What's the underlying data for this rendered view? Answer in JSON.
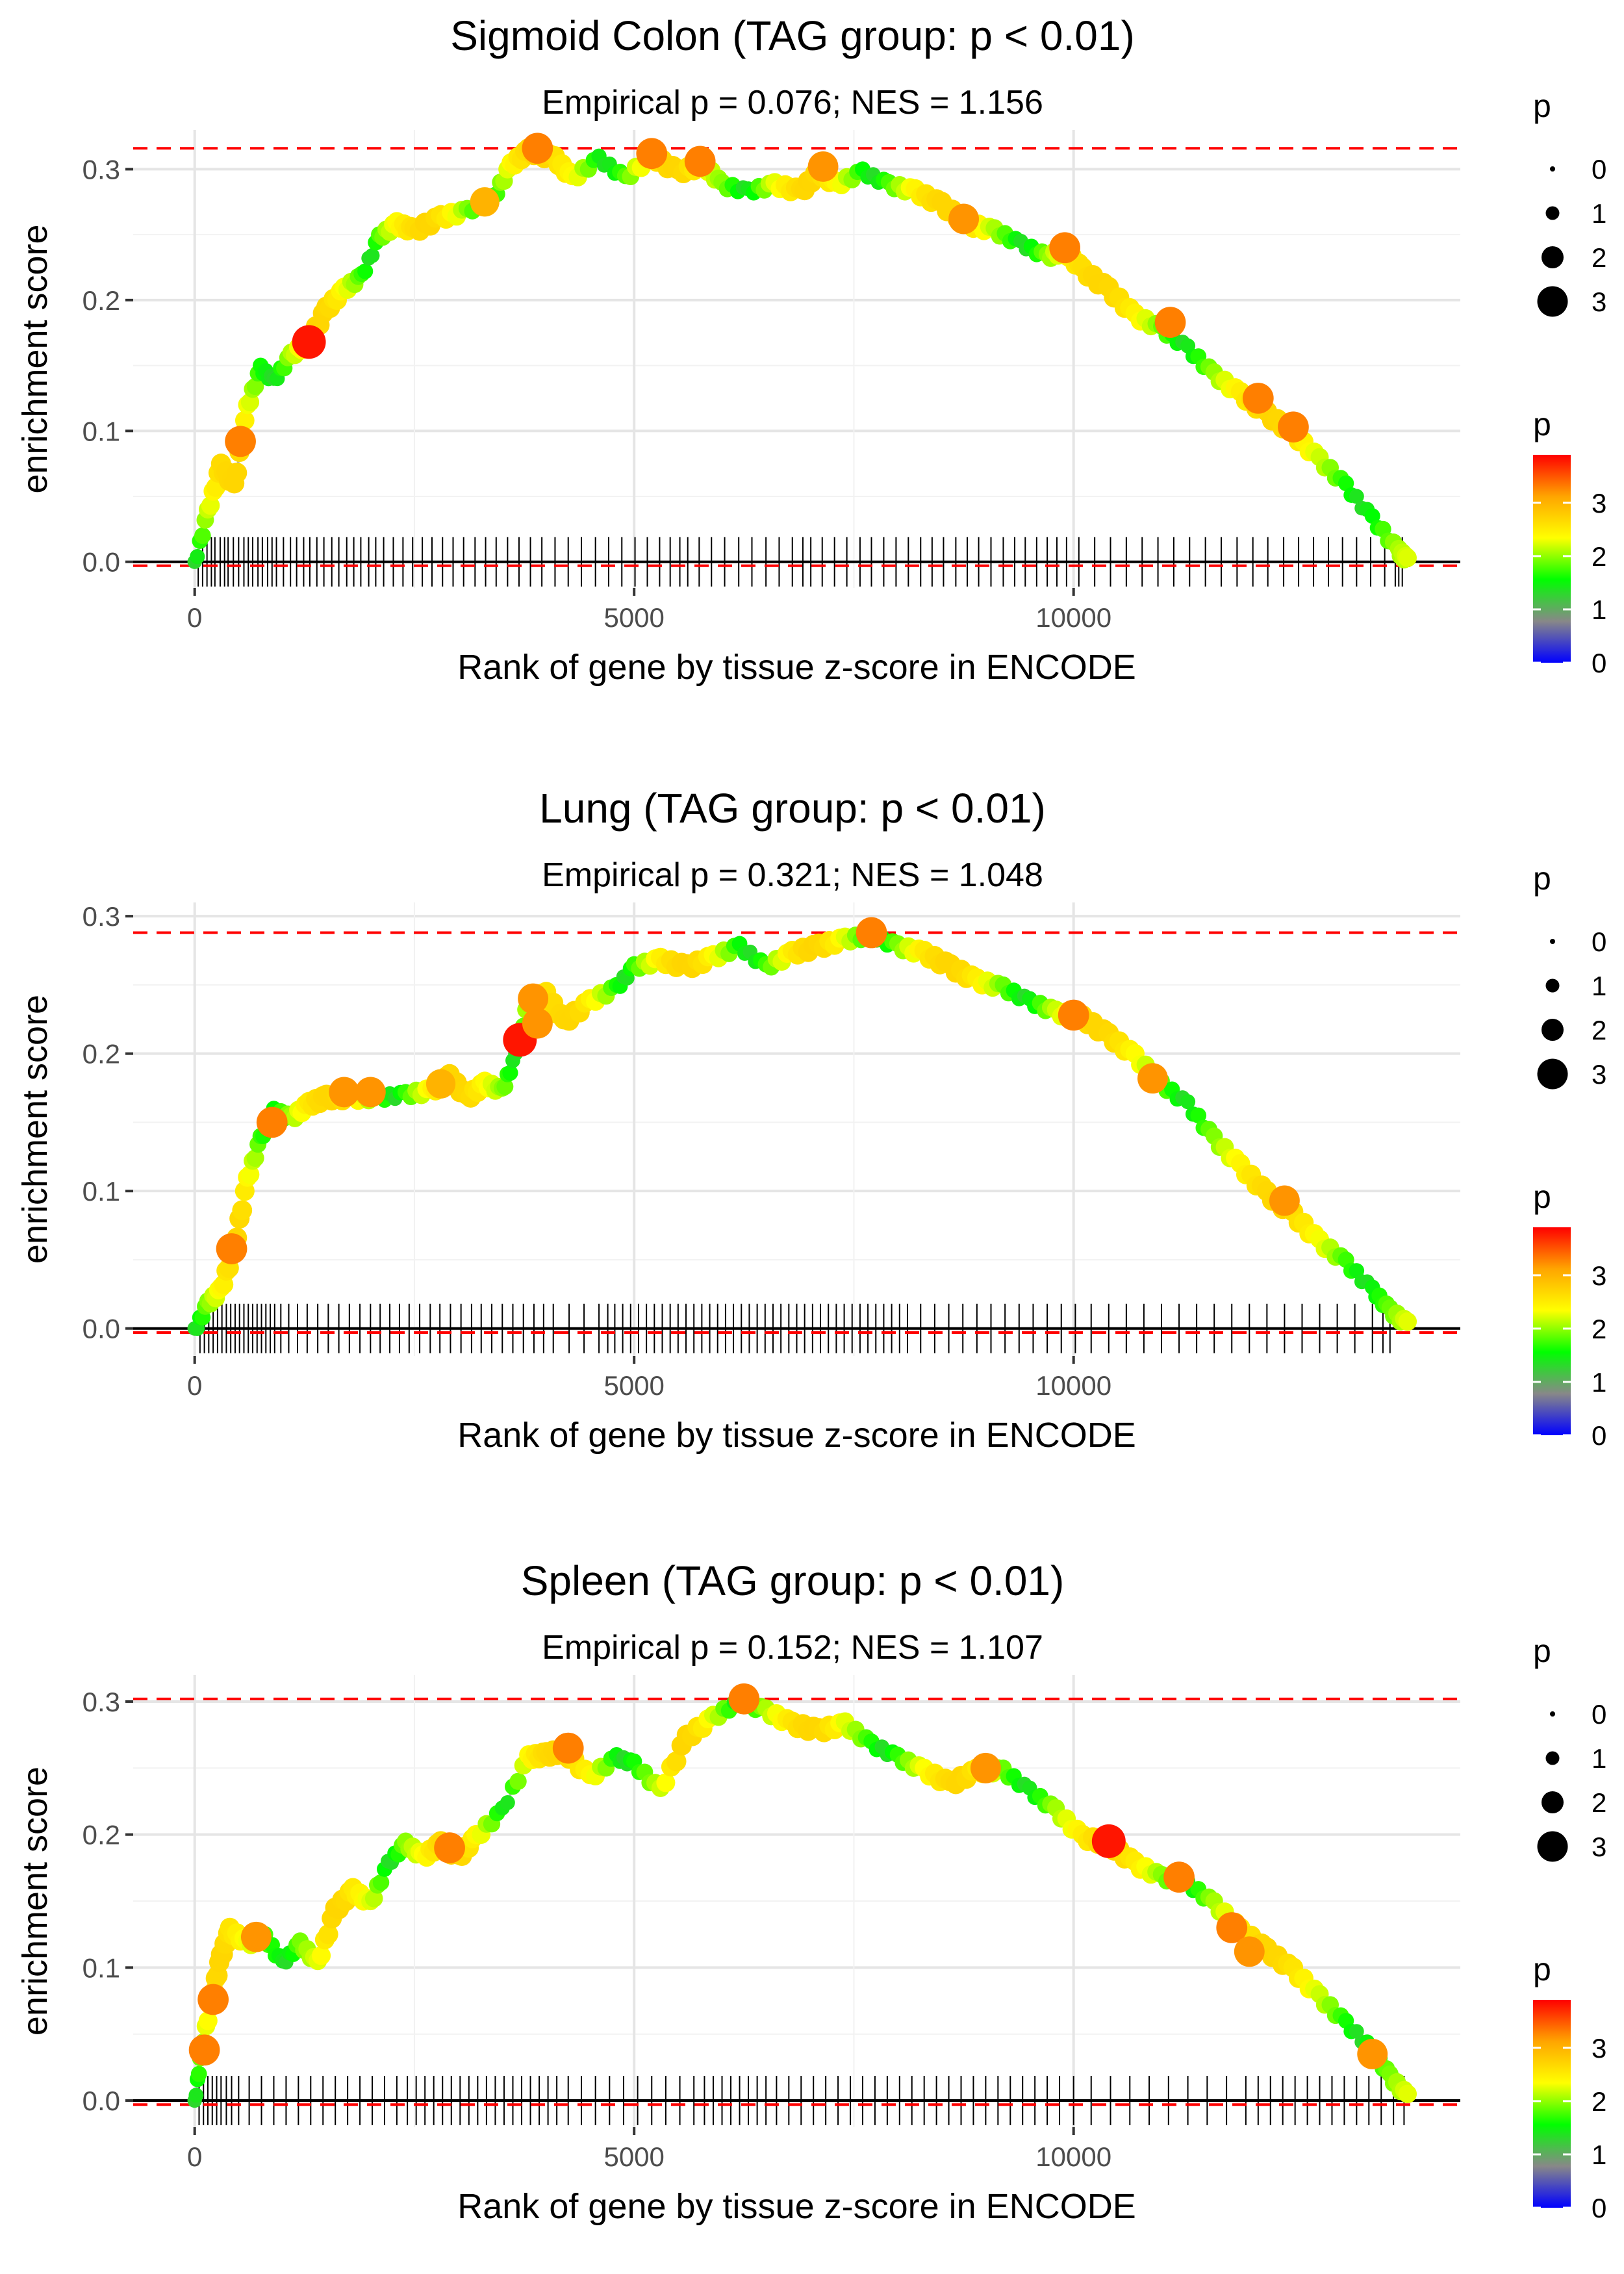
{
  "legend": {
    "size_title": "p",
    "size_labels": [
      "0",
      "1",
      "2",
      "3"
    ],
    "color_title": "p",
    "color_labels": [
      "3",
      "2",
      "1",
      "0"
    ],
    "gradient_colors": [
      "#0000FF",
      "#888888",
      "#00FF00",
      "#FFFF00",
      "#FFA500",
      "#FF0000"
    ]
  },
  "panels": [
    {
      "title": "Sigmoid Colon (TAG group: p < 0.01)",
      "subtitle": "Empirical p = 0.076; NES = 1.156"
    },
    {
      "title": "Lung (TAG group: p < 0.01)",
      "subtitle": "Empirical p = 0.321; NES = 1.048"
    },
    {
      "title": "Spleen (TAG group: p < 0.01)",
      "subtitle": "Empirical p = 0.152; NES = 1.107"
    }
  ],
  "chart_data": [
    {
      "type": "line",
      "title": "Sigmoid Colon (TAG group: p < 0.01)",
      "subtitle": "Empirical p = 0.076; NES = 1.156",
      "xlabel": "Rank of gene by tissue z-score in ENCODE",
      "ylabel": "enrichment score",
      "xlim": [
        -700,
        14400
      ],
      "ylim": [
        -0.02,
        0.33
      ],
      "xticks": [
        0,
        5000,
        10000
      ],
      "xtick_labels": [
        "0",
        "5000",
        "10000"
      ],
      "yticks": [
        0.0,
        0.1,
        0.2,
        0.3
      ],
      "ytick_labels": [
        "0.0",
        "0.1",
        "0.2",
        "0.3"
      ],
      "max_es": 0.316,
      "min_es": -0.003,
      "curve": [
        [
          0,
          0.0
        ],
        [
          150,
          0.04
        ],
        [
          300,
          0.075
        ],
        [
          450,
          0.06
        ],
        [
          600,
          0.12
        ],
        [
          750,
          0.15
        ],
        [
          900,
          0.14
        ],
        [
          1100,
          0.16
        ],
        [
          1300,
          0.17
        ],
        [
          1500,
          0.195
        ],
        [
          1700,
          0.21
        ],
        [
          1900,
          0.22
        ],
        [
          2100,
          0.25
        ],
        [
          2300,
          0.26
        ],
        [
          2500,
          0.255
        ],
        [
          2800,
          0.265
        ],
        [
          3100,
          0.27
        ],
        [
          3400,
          0.28
        ],
        [
          3600,
          0.305
        ],
        [
          3800,
          0.316
        ],
        [
          4100,
          0.31
        ],
        [
          4300,
          0.295
        ],
        [
          4600,
          0.31
        ],
        [
          4900,
          0.295
        ],
        [
          5200,
          0.312
        ],
        [
          5500,
          0.3
        ],
        [
          5800,
          0.305
        ],
        [
          6000,
          0.29
        ],
        [
          6300,
          0.285
        ],
        [
          6600,
          0.29
        ],
        [
          6900,
          0.285
        ],
        [
          7100,
          0.3
        ],
        [
          7300,
          0.29
        ],
        [
          7600,
          0.3
        ],
        [
          7900,
          0.29
        ],
        [
          8200,
          0.285
        ],
        [
          8500,
          0.275
        ],
        [
          8800,
          0.26
        ],
        [
          9100,
          0.255
        ],
        [
          9400,
          0.245
        ],
        [
          9700,
          0.235
        ],
        [
          9900,
          0.24
        ],
        [
          10100,
          0.225
        ],
        [
          10400,
          0.21
        ],
        [
          10700,
          0.19
        ],
        [
          11000,
          0.18
        ],
        [
          11300,
          0.165
        ],
        [
          11600,
          0.145
        ],
        [
          11900,
          0.13
        ],
        [
          12200,
          0.115
        ],
        [
          12500,
          0.1
        ],
        [
          12800,
          0.08
        ],
        [
          13100,
          0.06
        ],
        [
          13400,
          0.035
        ],
        [
          13700,
          0.01
        ],
        [
          13800,
          0.003
        ]
      ],
      "highlights": [
        [
          1300,
          0.168,
          3.8
        ],
        [
          520,
          0.092,
          3.3
        ],
        [
          3900,
          0.316,
          3.3
        ],
        [
          5200,
          0.312,
          3.3
        ],
        [
          5750,
          0.306,
          3.3
        ],
        [
          7150,
          0.302,
          3.2
        ],
        [
          8750,
          0.262,
          3.2
        ],
        [
          9900,
          0.24,
          3.3
        ],
        [
          11100,
          0.183,
          3.3
        ],
        [
          12100,
          0.125,
          3.3
        ],
        [
          12500,
          0.103,
          3.3
        ],
        [
          3300,
          0.275,
          3.0
        ]
      ],
      "leading_edge_ranks": [
        40,
        90,
        140,
        190,
        230,
        290,
        340,
        380,
        440,
        500,
        560,
        610,
        660,
        720,
        770,
        830,
        880,
        930,
        1010,
        1090,
        1160,
        1240,
        1310,
        1390,
        1470,
        1560,
        1640,
        1730,
        1810,
        1890,
        1980,
        2060,
        2150,
        2260,
        2370,
        2480,
        2590,
        2700,
        2820,
        2940,
        3060,
        3190,
        3310,
        3430,
        3560,
        3690,
        3820,
        3950,
        4100,
        4250,
        4400,
        4560,
        4710,
        4860,
        5010,
        5150,
        5290,
        5410,
        5520,
        5610,
        5740,
        5880,
        6030,
        6190,
        6340,
        6500,
        6650,
        6800,
        6920,
        7010,
        7140,
        7280,
        7420,
        7570,
        7700,
        7840,
        7980,
        8120,
        8260,
        8390,
        8520,
        8660,
        8790,
        8920,
        9060,
        9200,
        9330,
        9450,
        9580,
        9700,
        9810,
        9920,
        10060,
        10240,
        10420,
        10600,
        10780,
        10960,
        11140,
        11320,
        11500,
        11680,
        11860,
        12040,
        12210,
        12390,
        12560,
        12730,
        12900,
        13060,
        13220,
        13380,
        13540,
        13660,
        13700,
        13740
      ]
    },
    {
      "type": "line",
      "title": "Lung (TAG group: p < 0.01)",
      "subtitle": "Empirical p = 0.321; NES = 1.048",
      "xlabel": "Rank of gene by tissue z-score in ENCODE",
      "ylabel": "enrichment score",
      "xlim": [
        -700,
        14400
      ],
      "ylim": [
        -0.02,
        0.31
      ],
      "xticks": [
        0,
        5000,
        10000
      ],
      "xtick_labels": [
        "0",
        "5000",
        "10000"
      ],
      "yticks": [
        0.0,
        0.1,
        0.2,
        0.3
      ],
      "ytick_labels": [
        "0.0",
        "0.1",
        "0.2",
        "0.3"
      ],
      "max_es": 0.288,
      "min_es": -0.003,
      "curve": [
        [
          0,
          0.0
        ],
        [
          150,
          0.02
        ],
        [
          300,
          0.03
        ],
        [
          450,
          0.06
        ],
        [
          600,
          0.11
        ],
        [
          750,
          0.14
        ],
        [
          900,
          0.16
        ],
        [
          1100,
          0.155
        ],
        [
          1300,
          0.165
        ],
        [
          1500,
          0.17
        ],
        [
          1800,
          0.17
        ],
        [
          2100,
          0.17
        ],
        [
          2400,
          0.172
        ],
        [
          2700,
          0.175
        ],
        [
          2900,
          0.185
        ],
        [
          3100,
          0.17
        ],
        [
          3300,
          0.18
        ],
        [
          3500,
          0.175
        ],
        [
          3650,
          0.2
        ],
        [
          3800,
          0.24
        ],
        [
          4000,
          0.245
        ],
        [
          4200,
          0.225
        ],
        [
          4500,
          0.24
        ],
        [
          4800,
          0.25
        ],
        [
          5000,
          0.265
        ],
        [
          5300,
          0.27
        ],
        [
          5600,
          0.265
        ],
        [
          5900,
          0.272
        ],
        [
          6200,
          0.28
        ],
        [
          6500,
          0.265
        ],
        [
          6800,
          0.275
        ],
        [
          7100,
          0.28
        ],
        [
          7400,
          0.285
        ],
        [
          7700,
          0.288
        ],
        [
          8000,
          0.28
        ],
        [
          8300,
          0.275
        ],
        [
          8600,
          0.265
        ],
        [
          8900,
          0.255
        ],
        [
          9200,
          0.25
        ],
        [
          9500,
          0.24
        ],
        [
          9800,
          0.232
        ],
        [
          10100,
          0.228
        ],
        [
          10400,
          0.215
        ],
        [
          10700,
          0.2
        ],
        [
          11000,
          0.18
        ],
        [
          11300,
          0.165
        ],
        [
          11600,
          0.14
        ],
        [
          11900,
          0.12
        ],
        [
          12200,
          0.1
        ],
        [
          12500,
          0.085
        ],
        [
          12800,
          0.065
        ],
        [
          13100,
          0.05
        ],
        [
          13400,
          0.03
        ],
        [
          13600,
          0.015
        ],
        [
          13800,
          0.005
        ]
      ],
      "highlights": [
        [
          3700,
          0.21,
          3.8
        ],
        [
          420,
          0.058,
          3.3
        ],
        [
          880,
          0.15,
          3.3
        ],
        [
          1700,
          0.172,
          3.2
        ],
        [
          2000,
          0.172,
          3.2
        ],
        [
          3850,
          0.24,
          3.2
        ],
        [
          3900,
          0.222,
          3.2
        ],
        [
          7700,
          0.288,
          3.3
        ],
        [
          10000,
          0.228,
          3.3
        ],
        [
          10900,
          0.182,
          3.2
        ],
        [
          12400,
          0.093,
          3.2
        ],
        [
          2800,
          0.178,
          3.0
        ]
      ],
      "leading_edge_ranks": [
        60,
        110,
        160,
        210,
        260,
        310,
        360,
        410,
        460,
        510,
        560,
        610,
        660,
        710,
        760,
        810,
        860,
        910,
        980,
        1070,
        1170,
        1280,
        1400,
        1520,
        1640,
        1760,
        1880,
        2000,
        2110,
        2220,
        2330,
        2440,
        2560,
        2680,
        2790,
        2910,
        3030,
        3150,
        3260,
        3380,
        3500,
        3620,
        3740,
        3860,
        3970,
        4080,
        4260,
        4430,
        4600,
        4700,
        4780,
        4870,
        4960,
        5050,
        5140,
        5230,
        5320,
        5410,
        5500,
        5590,
        5680,
        5770,
        5860,
        5950,
        6040,
        6130,
        6220,
        6310,
        6400,
        6490,
        6580,
        6670,
        6760,
        6850,
        6940,
        7030,
        7120,
        7210,
        7300,
        7390,
        7480,
        7570,
        7660,
        7750,
        7840,
        7930,
        8020,
        8110,
        8260,
        8420,
        8580,
        8740,
        8900,
        9060,
        9220,
        9380,
        9540,
        9700,
        9860,
        10020,
        10200,
        10400,
        10600,
        10800,
        11000,
        11200,
        11400,
        11600,
        11800,
        12000,
        12200,
        12400,
        12600,
        12800,
        13000,
        13200,
        13400,
        13520,
        13600
      ]
    },
    {
      "type": "line",
      "title": "Spleen (TAG group: p < 0.01)",
      "subtitle": "Empirical p = 0.152; NES = 1.107",
      "xlabel": "Rank of gene by tissue z-score in ENCODE",
      "ylabel": "enrichment score",
      "xlim": [
        -700,
        14400
      ],
      "ylim": [
        -0.02,
        0.32
      ],
      "xticks": [
        0,
        5000,
        10000
      ],
      "xtick_labels": [
        "0",
        "5000",
        "10000"
      ],
      "yticks": [
        0.0,
        0.1,
        0.2,
        0.3
      ],
      "ytick_labels": [
        "0.0",
        "0.1",
        "0.2",
        "0.3"
      ],
      "max_es": 0.302,
      "min_es": -0.003,
      "curve": [
        [
          0,
          0.0
        ],
        [
          80,
          0.04
        ],
        [
          200,
          0.08
        ],
        [
          300,
          0.11
        ],
        [
          400,
          0.13
        ],
        [
          600,
          0.12
        ],
        [
          800,
          0.125
        ],
        [
          1000,
          0.105
        ],
        [
          1200,
          0.12
        ],
        [
          1400,
          0.105
        ],
        [
          1600,
          0.145
        ],
        [
          1800,
          0.16
        ],
        [
          2000,
          0.15
        ],
        [
          2200,
          0.18
        ],
        [
          2400,
          0.195
        ],
        [
          2600,
          0.185
        ],
        [
          2800,
          0.195
        ],
        [
          3000,
          0.185
        ],
        [
          3200,
          0.2
        ],
        [
          3500,
          0.22
        ],
        [
          3800,
          0.26
        ],
        [
          4000,
          0.262
        ],
        [
          4200,
          0.265
        ],
        [
          4500,
          0.245
        ],
        [
          4800,
          0.26
        ],
        [
          5000,
          0.255
        ],
        [
          5300,
          0.235
        ],
        [
          5600,
          0.275
        ],
        [
          5900,
          0.29
        ],
        [
          6200,
          0.302
        ],
        [
          6500,
          0.295
        ],
        [
          6800,
          0.285
        ],
        [
          7100,
          0.28
        ],
        [
          7400,
          0.285
        ],
        [
          7700,
          0.27
        ],
        [
          8000,
          0.26
        ],
        [
          8300,
          0.25
        ],
        [
          8600,
          0.24
        ],
        [
          8900,
          0.25
        ],
        [
          9200,
          0.25
        ],
        [
          9500,
          0.235
        ],
        [
          9800,
          0.22
        ],
        [
          10100,
          0.2
        ],
        [
          10400,
          0.195
        ],
        [
          10700,
          0.18
        ],
        [
          11000,
          0.17
        ],
        [
          11300,
          0.165
        ],
        [
          11600,
          0.15
        ],
        [
          11900,
          0.13
        ],
        [
          12200,
          0.115
        ],
        [
          12500,
          0.1
        ],
        [
          12800,
          0.08
        ],
        [
          13100,
          0.06
        ],
        [
          13400,
          0.04
        ],
        [
          13600,
          0.02
        ],
        [
          13800,
          0.005
        ]
      ],
      "highlights": [
        [
          10400,
          0.195,
          3.8
        ],
        [
          110,
          0.038,
          3.3
        ],
        [
          210,
          0.076,
          3.3
        ],
        [
          700,
          0.123,
          3.2
        ],
        [
          2900,
          0.19,
          3.3
        ],
        [
          4250,
          0.265,
          3.3
        ],
        [
          6250,
          0.302,
          3.3
        ],
        [
          9000,
          0.25,
          3.2
        ],
        [
          11200,
          0.168,
          3.3
        ],
        [
          11800,
          0.13,
          3.3
        ],
        [
          12000,
          0.112,
          3.2
        ],
        [
          13400,
          0.035,
          3.2
        ]
      ],
      "leading_edge_ranks": [
        50,
        100,
        150,
        200,
        250,
        300,
        360,
        420,
        500,
        620,
        760,
        900,
        1040,
        1180,
        1320,
        1460,
        1600,
        1740,
        1880,
        2020,
        2160,
        2300,
        2420,
        2520,
        2620,
        2720,
        2820,
        2920,
        3020,
        3120,
        3220,
        3320,
        3420,
        3520,
        3620,
        3720,
        3820,
        3920,
        4020,
        4120,
        4250,
        4400,
        4560,
        4720,
        4880,
        5040,
        5200,
        5360,
        5520,
        5680,
        5800,
        5900,
        6000,
        6100,
        6200,
        6300,
        6400,
        6500,
        6620,
        6760,
        6900,
        7040,
        7180,
        7320,
        7460,
        7600,
        7740,
        7880,
        8020,
        8160,
        8300,
        8440,
        8580,
        8720,
        8860,
        9000,
        9140,
        9280,
        9420,
        9560,
        9700,
        9840,
        10000,
        10200,
        10420,
        10640,
        10860,
        11080,
        11300,
        11520,
        11740,
        11960,
        12100,
        12240,
        12380,
        12520,
        12660,
        12800,
        12940,
        13080,
        13220,
        13360,
        13500,
        13640,
        13760
      ]
    }
  ]
}
